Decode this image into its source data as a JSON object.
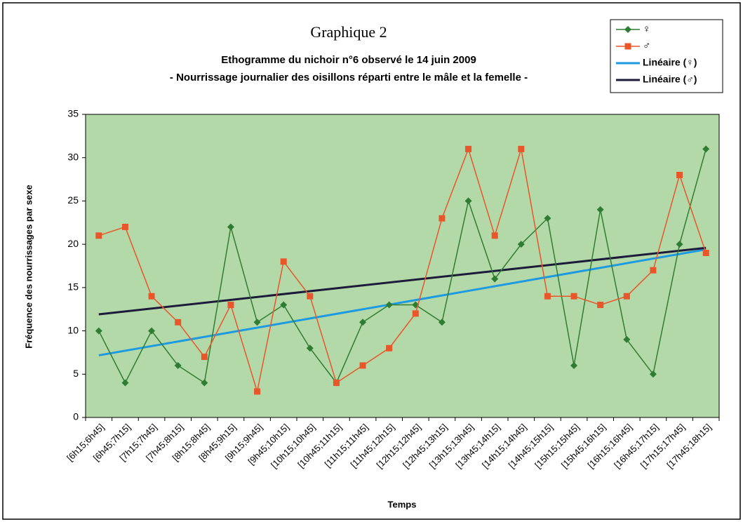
{
  "chart_data": {
    "type": "line",
    "title": "Graphique 2",
    "subtitle": [
      "Ethogramme du nichoir n°6 observé le 14 juin 2009",
      "- Nourrissage journalier des oisillons réparti entre le mâle et la femelle -"
    ],
    "x_label": "Temps",
    "y_label": "Fréquence des nourrissages par sexe",
    "categories": [
      "[6h15;6h45]",
      "[6h45;7h15]",
      "[7h15;7h45]",
      "[7h45;8h15]",
      "[8h15;8h45]",
      "[8h45;9h15]",
      "[9h15;9h45]",
      "[9h45;10h15]",
      "[10h15;10h45]",
      "[10h45;11h15]",
      "[11h15;11h45]",
      "[11h45;12h15]",
      "[12h15;12h45]",
      "[12h45;13h15]",
      "[13h15;13h45]",
      "[13h45;14h15]",
      "[14h15;14h45]",
      "[14h45;15h15]",
      "[15h15;15h45]",
      "[15h45;16h15]",
      "[16h15;16h45]",
      "[16h45;17h15]",
      "[17h15;17h45]",
      "[17h45;18h15]"
    ],
    "series": [
      {
        "name": "♀",
        "color": "#2e7d32",
        "marker": "diamond",
        "values": [
          10,
          4,
          10,
          6,
          4,
          22,
          11,
          13,
          8,
          4,
          11,
          13,
          13,
          11,
          25,
          16,
          20,
          23,
          6,
          24,
          9,
          5,
          20,
          31
        ],
        "trendline": {
          "name": "Linéaire (♀)",
          "color": "#1e9be0"
        }
      },
      {
        "name": "♂",
        "color": "#e8562a",
        "marker": "square",
        "values": [
          21,
          22,
          14,
          11,
          7,
          13,
          3,
          18,
          14,
          4,
          6,
          8,
          12,
          23,
          31,
          21,
          31,
          14,
          14,
          13,
          14,
          17,
          28,
          19
        ],
        "trendline": {
          "name": "Linéaire (♂)",
          "color": "#1c1b3a"
        }
      }
    ],
    "ylim": [
      0,
      35
    ],
    "yticks": [
      0,
      5,
      10,
      15,
      20,
      25,
      30,
      35
    ],
    "grid": false,
    "plot_background": "#b3d9a8",
    "legend": "top-right"
  }
}
